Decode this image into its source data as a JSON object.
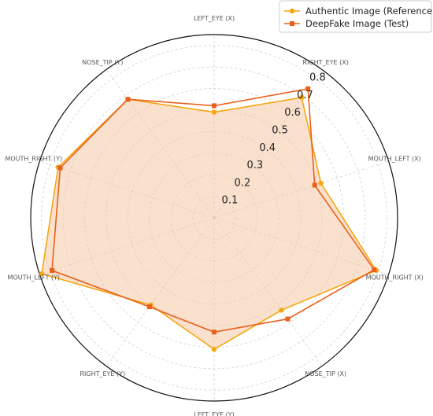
{
  "chart_data": {
    "type": "radar",
    "axes": [
      "LEFT_EYE (X)",
      "RIGHT_EYE (X)",
      "MOUTH_LEFT (X)",
      "MOUTH_RIGHT (X)",
      "NOSE_TIP (X)",
      "LEFT_EYE (Y)",
      "RIGHT_EYE (Y)",
      "MOUTH_LEFT (Y)",
      "MOUTH_RIGHT (Y)",
      "NOSE_TIP (Y)"
    ],
    "radial_ticks": [
      "0.1",
      "0.2",
      "0.3",
      "0.4",
      "0.5",
      "0.6",
      "0.7",
      "0.8"
    ],
    "rmax": 0.85,
    "grid": true,
    "legend_position": "top-right",
    "series": [
      {
        "name": "Authentic Image (Reference)",
        "color": "#f5a713",
        "marker": "circle",
        "fill": true,
        "values": [
          0.49,
          0.69,
          0.52,
          0.79,
          0.53,
          0.61,
          0.5,
          0.84,
          0.76,
          0.68
        ]
      },
      {
        "name": "DeepFake Image (Test)",
        "color": "#e8601c",
        "marker": "square",
        "fill": false,
        "values": [
          0.52,
          0.74,
          0.49,
          0.78,
          0.58,
          0.53,
          0.51,
          0.79,
          0.75,
          0.68
        ]
      }
    ]
  }
}
